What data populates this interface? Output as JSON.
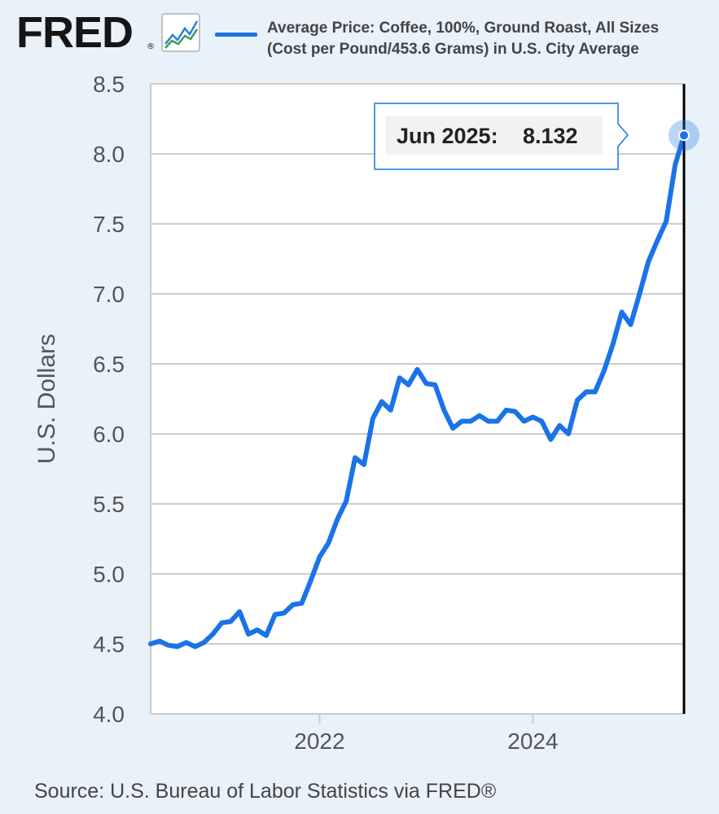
{
  "header": {
    "logo_text": "FRED",
    "logo_reg": "®",
    "legend_line1": "Average Price: Coffee, 100%, Ground Roast, All Sizes",
    "legend_line2": "(Cost per Pound/453.6 Grams) in U.S. City Average"
  },
  "colors": {
    "series": "#1a73e8",
    "background": "#e9f1f9",
    "plot_background": "#ffffff",
    "grid": "#cccccc"
  },
  "icons": [
    "fred-graph-icon"
  ],
  "footer": {
    "source": "Source: U.S. Bureau of Labor Statistics via FRED®"
  },
  "chart_data": {
    "type": "line",
    "title": "Average Price: Coffee, 100%, Ground Roast, All Sizes (Cost per Pound/453.6 Grams) in U.S. City Average",
    "xlabel": "",
    "ylabel": "U.S. Dollars",
    "ylim": [
      4.0,
      8.5
    ],
    "yticks": [
      {
        "value": 4.0,
        "label": "4.0"
      },
      {
        "value": 4.5,
        "label": "4.5"
      },
      {
        "value": 5.0,
        "label": "5.0"
      },
      {
        "value": 5.5,
        "label": "5.5"
      },
      {
        "value": 6.0,
        "label": "6.0"
      },
      {
        "value": 6.5,
        "label": "6.5"
      },
      {
        "value": 7.0,
        "label": "7.0"
      },
      {
        "value": 7.5,
        "label": "7.5"
      },
      {
        "value": 8.0,
        "label": "8.0"
      },
      {
        "value": 8.5,
        "label": "8.5"
      }
    ],
    "xlim": [
      "2020-06",
      "2025-06"
    ],
    "xticks": [
      {
        "value": "2022-01",
        "label": "2022"
      },
      {
        "value": "2024-01",
        "label": "2024"
      }
    ],
    "grid": true,
    "series": [
      {
        "x": [
          "2020-06",
          "2020-07",
          "2020-08",
          "2020-09",
          "2020-10",
          "2020-11",
          "2020-12",
          "2021-01",
          "2021-02",
          "2021-03",
          "2021-04",
          "2021-05",
          "2021-06",
          "2021-07",
          "2021-08",
          "2021-09",
          "2021-10",
          "2021-11",
          "2021-12",
          "2022-01",
          "2022-02",
          "2022-03",
          "2022-04",
          "2022-05",
          "2022-06",
          "2022-07",
          "2022-08",
          "2022-09",
          "2022-10",
          "2022-11",
          "2022-12",
          "2023-01",
          "2023-02",
          "2023-03",
          "2023-04",
          "2023-05",
          "2023-06",
          "2023-07",
          "2023-08",
          "2023-09",
          "2023-10",
          "2023-11",
          "2023-12",
          "2024-01",
          "2024-02",
          "2024-03",
          "2024-04",
          "2024-05",
          "2024-06",
          "2024-07",
          "2024-08",
          "2024-09",
          "2024-10",
          "2024-11",
          "2024-12",
          "2025-01",
          "2025-02",
          "2025-03",
          "2025-04",
          "2025-05",
          "2025-06"
        ],
        "values": [
          4.5,
          4.52,
          4.49,
          4.48,
          4.51,
          4.48,
          4.51,
          4.57,
          4.65,
          4.66,
          4.73,
          4.57,
          4.6,
          4.56,
          4.71,
          4.72,
          4.78,
          4.79,
          4.95,
          5.12,
          5.22,
          5.39,
          5.52,
          5.83,
          5.78,
          6.11,
          6.23,
          6.17,
          6.4,
          6.35,
          6.46,
          6.36,
          6.35,
          6.17,
          6.04,
          6.09,
          6.09,
          6.13,
          6.09,
          6.09,
          6.17,
          6.16,
          6.09,
          6.12,
          6.09,
          5.96,
          6.06,
          6.0,
          6.24,
          6.3,
          6.3,
          6.45,
          6.64,
          6.87,
          6.78,
          7.0,
          7.23,
          7.38,
          7.52,
          7.92,
          8.132
        ]
      }
    ],
    "tooltip": {
      "label": "Jun 2025:",
      "value": "8.132"
    }
  }
}
